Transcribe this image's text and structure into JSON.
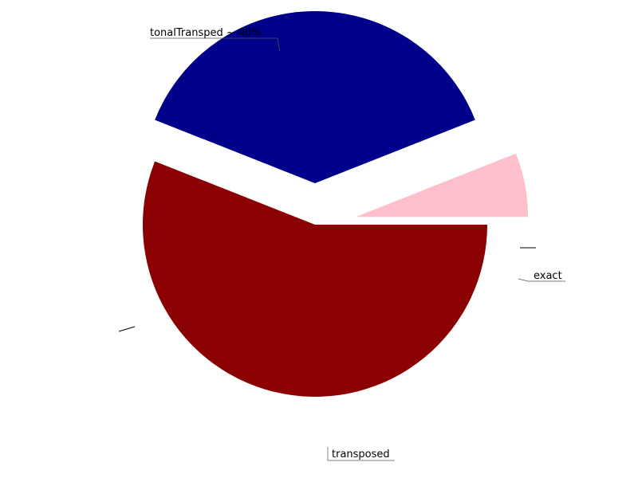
{
  "chart_data": {
    "type": "pie",
    "slices": [
      {
        "label": "tonalTransped ~ 40%",
        "value": 56,
        "color": "#8b0000",
        "explode": false
      },
      {
        "label": "",
        "value": 0,
        "color": "#ff0000",
        "explode": true
      },
      {
        "label": "transposed",
        "value": 38,
        "color": "#00008b",
        "explode": true
      },
      {
        "label": "exact",
        "value": 6,
        "color": "#ffc0cb",
        "explode": true
      },
      {
        "label": "",
        "value": 0,
        "color": "#000000",
        "explode": false
      }
    ],
    "start_angle_deg": 0,
    "direction": "counterclockwise",
    "legend": "none"
  }
}
